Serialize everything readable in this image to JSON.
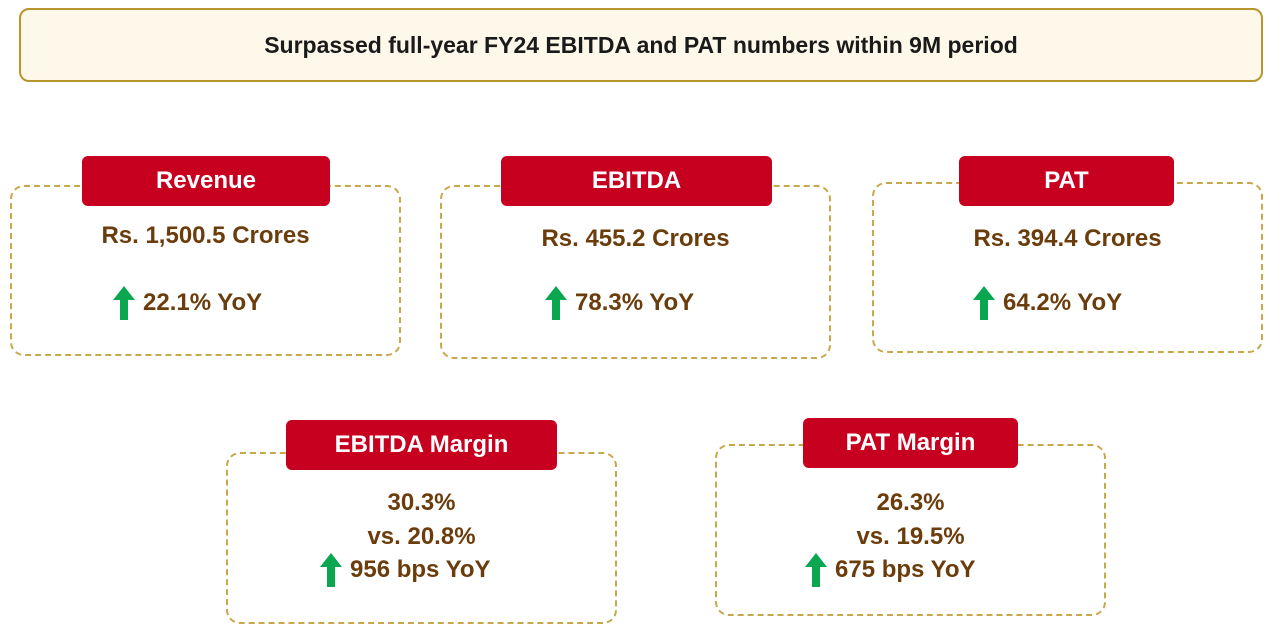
{
  "header": {
    "title": "Surpassed full-year FY24 EBITDA and PAT numbers within 9M period"
  },
  "colors": {
    "label_bg": "#c8001f",
    "value_text": "#6b3d0c",
    "border": "#c8a84a",
    "arrow": "#0aa650"
  },
  "icons": {
    "growth": "up-arrow-icon"
  },
  "cards": {
    "revenue": {
      "label": "Revenue",
      "amount": "Rs. 1,500.5 Crores",
      "growth": "22.1% YoY"
    },
    "ebitda": {
      "label": "EBITDA",
      "amount": "Rs. 455.2 Crores",
      "growth": "78.3% YoY"
    },
    "pat": {
      "label": "PAT",
      "amount": "Rs. 394.4 Crores",
      "growth": "64.2% YoY"
    },
    "ebitda_margin": {
      "label": "EBITDA Margin",
      "current": "30.3%",
      "previous": "vs. 20.8%",
      "growth": "956 bps YoY"
    },
    "pat_margin": {
      "label": "PAT Margin",
      "current": "26.3%",
      "previous": "vs. 19.5%",
      "growth": "675 bps YoY"
    }
  }
}
